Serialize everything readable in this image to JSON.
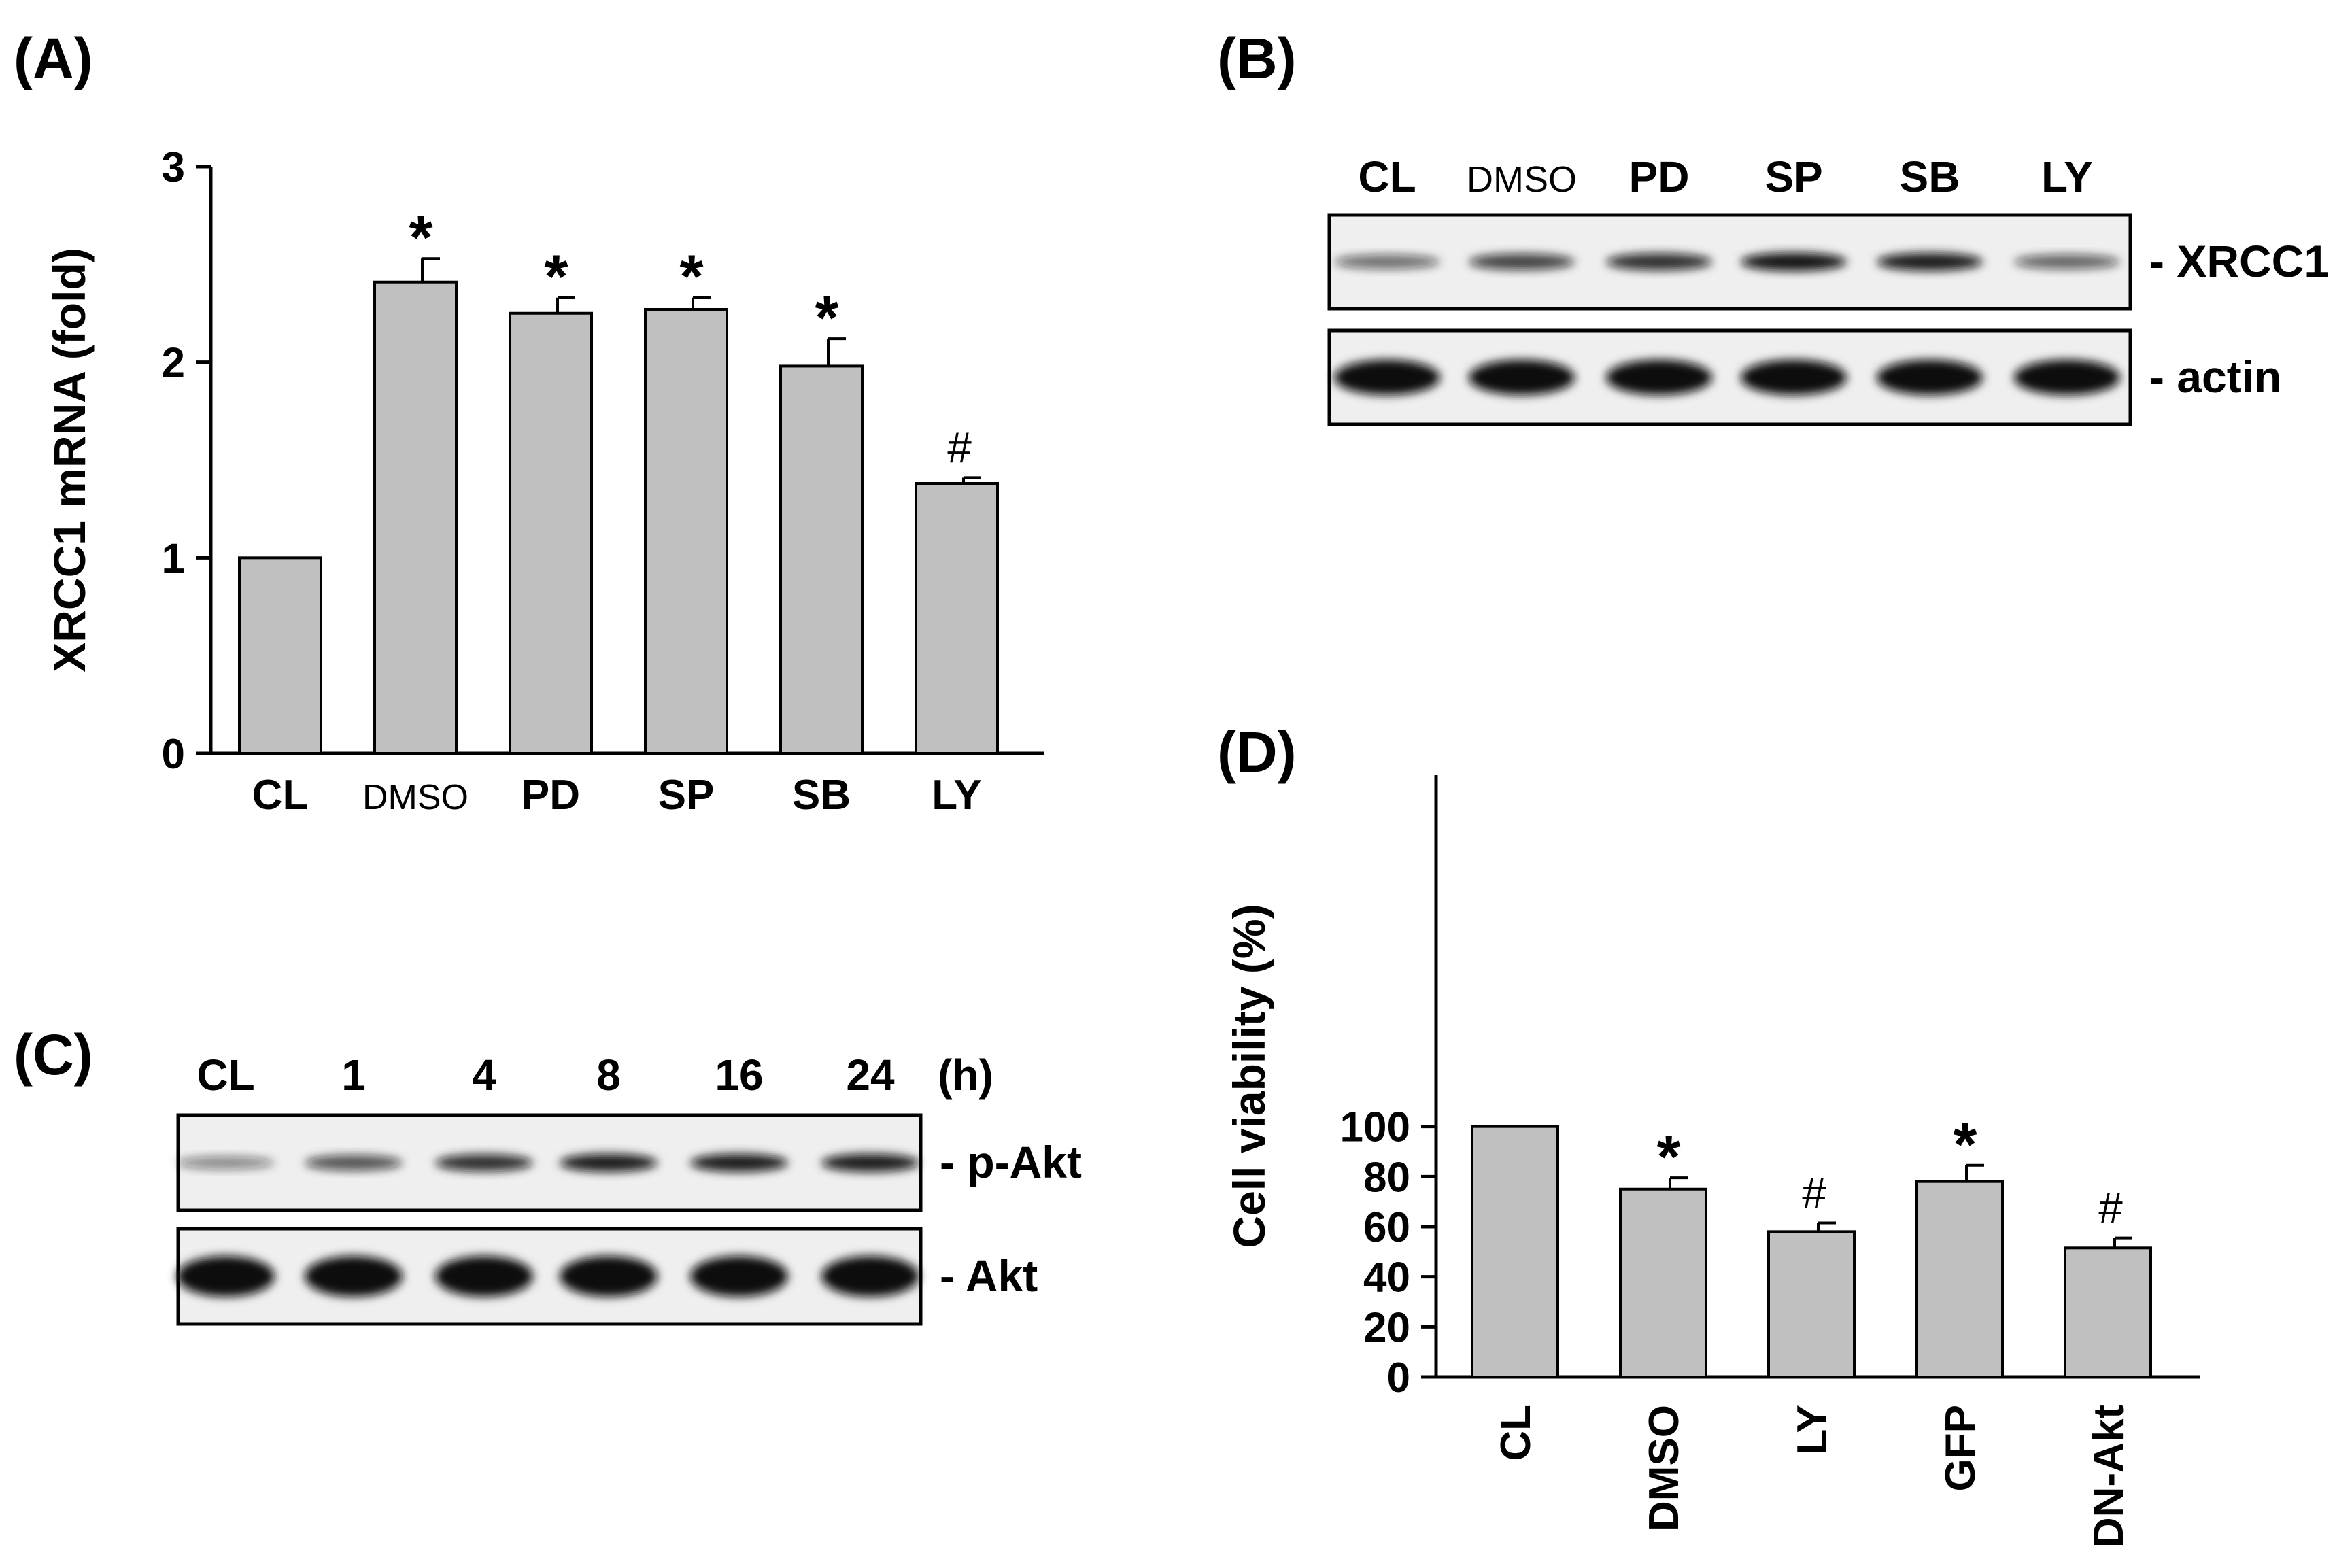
{
  "panel_labels": {
    "a": "(A)",
    "b": "(B)",
    "c": "(C)",
    "d": "(D)"
  },
  "colors": {
    "bar_fill": "#c0c0c0",
    "bar_stroke": "#000000",
    "axis": "#000000",
    "blot_bg": "#efefef",
    "band": "#111111"
  },
  "chart_data": [
    {
      "panel": "A",
      "type": "bar",
      "categories": [
        "CL",
        "DMSO",
        "PD",
        "SP",
        "SB",
        "LY"
      ],
      "values": [
        1.0,
        2.41,
        2.25,
        2.27,
        1.98,
        1.38
      ],
      "errors": [
        0,
        0.12,
        0.08,
        0.06,
        0.14,
        0.03
      ],
      "annotations": [
        "",
        "*",
        "*",
        "*",
        "*",
        "#"
      ],
      "xlabel": "",
      "ylabel": "XRCC1 mRNA (fold)",
      "ylim": [
        0,
        3
      ],
      "yticks": [
        "0",
        "1",
        "2",
        "3"
      ],
      "grid": false
    },
    {
      "panel": "D",
      "type": "bar",
      "categories": [
        "CL",
        "DMSO",
        "LY",
        "GFP",
        "DN-Akt"
      ],
      "values": [
        100,
        75,
        58,
        78,
        51.5
      ],
      "errors": [
        0,
        4.5,
        3.5,
        6.5,
        4
      ],
      "annotations": [
        "",
        "*",
        "#",
        "*",
        "#"
      ],
      "xlabel": "",
      "ylabel": "Cell viability (%)",
      "ylim": [
        0,
        120
      ],
      "yticks": [
        "0",
        "20",
        "40",
        "60",
        "80",
        "100"
      ],
      "grid": false
    }
  ],
  "blot_b": {
    "lanes": [
      "CL",
      "DMSO",
      "PD",
      "SP",
      "SB",
      "LY"
    ],
    "rows": [
      {
        "label": "- XRCC1",
        "intensity": [
          0.45,
          0.7,
          0.8,
          0.95,
          0.9,
          0.5
        ]
      },
      {
        "label": "- actin",
        "intensity": [
          1,
          1,
          1,
          1,
          1,
          1
        ]
      }
    ]
  },
  "blot_c": {
    "lanes": [
      "CL",
      "1",
      "4",
      "8",
      "16",
      "24"
    ],
    "unit": "(h)",
    "rows": [
      {
        "label": "- p-Akt",
        "intensity": [
          0.3,
          0.6,
          0.8,
          0.9,
          0.9,
          0.9
        ]
      },
      {
        "label": "- Akt",
        "intensity": [
          1,
          1,
          1,
          1,
          1,
          1
        ]
      }
    ]
  }
}
